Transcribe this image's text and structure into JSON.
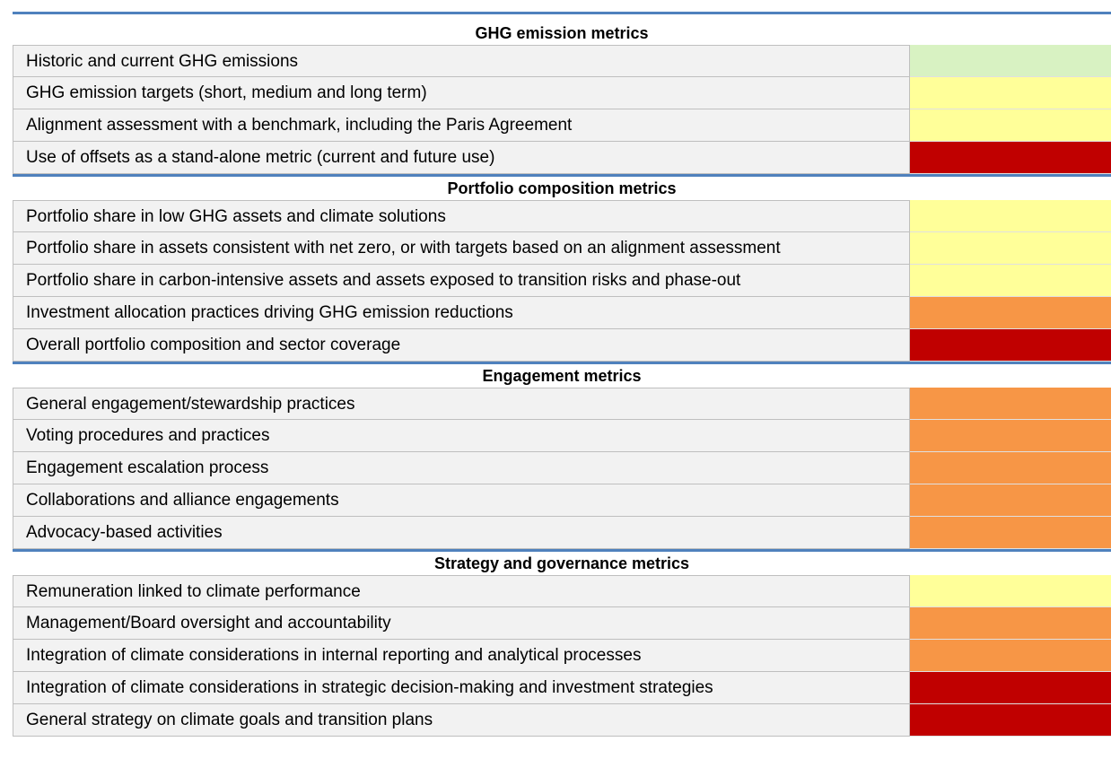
{
  "sections": [
    {
      "title": "GHG emission metrics",
      "rows": [
        {
          "label": "Historic and current GHG emissions",
          "color": "#d8f2c2"
        },
        {
          "label": "GHG emission targets (short, medium and long term)",
          "color": "#ffff99"
        },
        {
          "label": "Alignment assessment with a benchmark, including the Paris Agreement",
          "color": "#ffff99"
        },
        {
          "label": "Use of offsets as a stand-alone metric (current and future use)",
          "color": "#c00000"
        }
      ]
    },
    {
      "title": "Portfolio composition metrics",
      "rows": [
        {
          "label": "Portfolio share in low GHG assets and climate solutions",
          "color": "#ffff99"
        },
        {
          "label": "Portfolio share in assets consistent with net zero, or with targets based on an alignment assessment",
          "color": "#ffff99"
        },
        {
          "label": "Portfolio share in carbon-intensive assets and assets exposed to transition risks and phase-out",
          "color": "#ffff99"
        },
        {
          "label": "Investment allocation practices driving GHG emission reductions",
          "color": "#f79646"
        },
        {
          "label": "Overall portfolio composition and sector coverage",
          "color": "#c00000"
        }
      ]
    },
    {
      "title": "Engagement metrics",
      "rows": [
        {
          "label": "General engagement/stewardship practices",
          "color": "#f79646"
        },
        {
          "label": "Voting procedures and practices",
          "color": "#f79646"
        },
        {
          "label": "Engagement escalation process",
          "color": "#f79646"
        },
        {
          "label": "Collaborations and alliance engagements",
          "color": "#f79646"
        },
        {
          "label": "Advocacy-based activities",
          "color": "#f79646"
        }
      ]
    },
    {
      "title": "Strategy and governance metrics",
      "rows": [
        {
          "label": "Remuneration linked to climate performance",
          "color": "#ffff99"
        },
        {
          "label": "Management/Board oversight and accountability",
          "color": "#f79646"
        },
        {
          "label": "Integration of climate considerations in internal reporting and analytical processes",
          "color": "#f79646"
        },
        {
          "label": "Integration of climate considerations in strategic decision-making and investment strategies",
          "color": "#c00000"
        },
        {
          "label": "General strategy on climate goals and transition plans",
          "color": "#c00000"
        }
      ]
    }
  ]
}
